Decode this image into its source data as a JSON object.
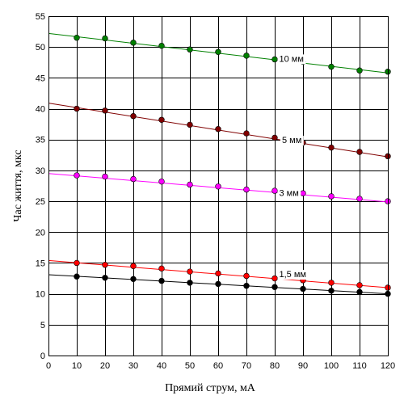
{
  "chart_data": {
    "type": "scatter",
    "title": "",
    "xlabel": "Прямий струм, мА",
    "ylabel": "Час життя, мкс",
    "xlim": [
      0,
      120
    ],
    "ylim": [
      0,
      55
    ],
    "x_ticks": [
      "0",
      "10",
      "20",
      "30",
      "40",
      "50",
      "60",
      "70",
      "80",
      "90",
      "100",
      "110",
      "120"
    ],
    "y_ticks": [
      "0",
      "5",
      "10",
      "15",
      "20",
      "25",
      "30",
      "35",
      "40",
      "45",
      "50",
      "55"
    ],
    "grid": true,
    "x": [
      10,
      20,
      30,
      40,
      50,
      60,
      70,
      80,
      90,
      100,
      110,
      120
    ],
    "series": [
      {
        "name": "10 мм",
        "color": "#008000",
        "values": [
          51.5,
          51.4,
          50.7,
          50.2,
          49.6,
          49.2,
          48.6,
          48.0,
          47.6,
          46.8,
          46.2,
          46.0
        ],
        "fit": [
          52.2,
          45.8
        ]
      },
      {
        "name": "5 мм",
        "color": "#800000",
        "values": [
          40.0,
          39.7,
          38.8,
          38.2,
          37.4,
          36.7,
          36.0,
          35.3,
          34.5,
          33.7,
          33.0,
          32.3
        ],
        "fit": [
          40.9,
          32.2
        ]
      },
      {
        "name": "3 мм",
        "color": "#ff00ff",
        "values": [
          29.2,
          29.0,
          28.6,
          28.2,
          27.7,
          27.4,
          26.9,
          26.7,
          26.3,
          25.8,
          25.4,
          25.0
        ],
        "fit": [
          29.5,
          24.9
        ]
      },
      {
        "name": "1,5 мм",
        "color": "#ff0000",
        "values": [
          15.0,
          14.7,
          14.5,
          14.1,
          13.6,
          13.3,
          12.9,
          12.5,
          12.2,
          11.8,
          11.4,
          11.0
        ],
        "fit": [
          15.4,
          11.0
        ]
      },
      {
        "name": "",
        "color": "#000000",
        "values": [
          12.8,
          12.6,
          12.4,
          12.1,
          11.8,
          11.6,
          11.3,
          11.1,
          10.8,
          10.5,
          10.3,
          10.0
        ],
        "fit": [
          13.1,
          10.0
        ]
      }
    ]
  }
}
